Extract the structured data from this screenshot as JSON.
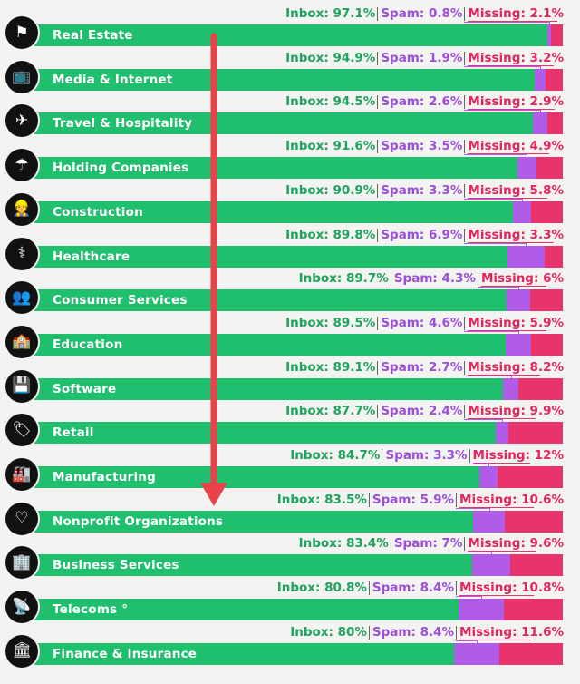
{
  "chart_data": {
    "type": "bar",
    "orientation": "horizontal",
    "stacked": true,
    "title": "",
    "xlabel": "",
    "ylabel": "",
    "xlim": [
      0,
      100
    ],
    "colors": {
      "inbox": "#1fbf6e",
      "spam": "#b05ce8",
      "missing": "#e8336d",
      "arrow": "#e8434a"
    },
    "series_names": [
      "Inbox",
      "Spam",
      "Missing"
    ],
    "categories": [
      {
        "label": "Real Estate",
        "icon": "flag-icon",
        "glyph": "⚑",
        "inbox": 97.1,
        "spam": 0.8,
        "missing": 2.1,
        "inbox_text": "Inbox: 97.1%",
        "spam_text": "Spam: 0.8%",
        "missing_text": "Missing: 2.1%"
      },
      {
        "label": "Media & Internet",
        "icon": "tv-icon",
        "glyph": "📺",
        "inbox": 94.9,
        "spam": 1.9,
        "missing": 3.2,
        "inbox_text": "Inbox: 94.9%",
        "spam_text": "Spam: 1.9%",
        "missing_text": "Missing: 3.2%"
      },
      {
        "label": "Travel & Hospitality",
        "icon": "ticket-icon",
        "glyph": "✈",
        "inbox": 94.5,
        "spam": 2.6,
        "missing": 2.9,
        "inbox_text": "Inbox: 94.5%",
        "spam_text": "Spam: 2.6%",
        "missing_text": "Missing: 2.9%"
      },
      {
        "label": "Holding Companies",
        "icon": "umbrella-icon",
        "glyph": "☂",
        "inbox": 91.6,
        "spam": 3.5,
        "missing": 4.9,
        "inbox_text": "Inbox: 91.6%",
        "spam_text": "Spam: 3.5%",
        "missing_text": "Missing: 4.9%"
      },
      {
        "label": "Construction",
        "icon": "worker-icon",
        "glyph": "👷",
        "inbox": 90.9,
        "spam": 3.3,
        "missing": 5.8,
        "inbox_text": "Inbox: 90.9%",
        "spam_text": "Spam: 3.3%",
        "missing_text": "Missing: 5.8%"
      },
      {
        "label": "Healthcare",
        "icon": "caduceus-icon",
        "glyph": "⚕",
        "inbox": 89.8,
        "spam": 6.9,
        "missing": 3.3,
        "inbox_text": "Inbox: 89.8%",
        "spam_text": "Spam: 6.9%",
        "missing_text": "Missing: 3.3%"
      },
      {
        "label": "Consumer Services",
        "icon": "people-icon",
        "glyph": "👥",
        "inbox": 89.7,
        "spam": 4.3,
        "missing": 6,
        "inbox_text": "Inbox: 89.7%",
        "spam_text": "Spam: 4.3%",
        "missing_text": "Missing: 6%"
      },
      {
        "label": "Education",
        "icon": "school-icon",
        "glyph": "🏫",
        "inbox": 89.5,
        "spam": 4.6,
        "missing": 5.9,
        "inbox_text": "Inbox: 89.5%",
        "spam_text": "Spam: 4.6%",
        "missing_text": "Missing: 5.9%"
      },
      {
        "label": "Software",
        "icon": "software-icon",
        "glyph": "💾",
        "inbox": 89.1,
        "spam": 2.7,
        "missing": 8.2,
        "inbox_text": "Inbox: 89.1%",
        "spam_text": "Spam: 2.7%",
        "missing_text": "Missing: 8.2%"
      },
      {
        "label": "Retail",
        "icon": "tag-icon",
        "glyph": "🏷",
        "inbox": 87.7,
        "spam": 2.4,
        "missing": 9.9,
        "inbox_text": "Inbox: 87.7%",
        "spam_text": "Spam: 2.4%",
        "missing_text": "Missing: 9.9%"
      },
      {
        "label": "Manufacturing",
        "icon": "factory-icon",
        "glyph": "🏭",
        "inbox": 84.7,
        "spam": 3.3,
        "missing": 12,
        "inbox_text": "Inbox: 84.7%",
        "spam_text": "Spam: 3.3%",
        "missing_text": "Missing: 12%"
      },
      {
        "label": "Nonprofit Organizations",
        "icon": "hand-heart-icon",
        "glyph": "♡",
        "inbox": 83.5,
        "spam": 5.9,
        "missing": 10.6,
        "inbox_text": "Inbox: 83.5%",
        "spam_text": "Spam: 5.9%",
        "missing_text": "Missing: 10.6%"
      },
      {
        "label": "Business Services",
        "icon": "building-icon",
        "glyph": "🏢",
        "inbox": 83.4,
        "spam": 7,
        "missing": 9.6,
        "inbox_text": "Inbox: 83.4%",
        "spam_text": "Spam: 7%",
        "missing_text": "Missing: 9.6%"
      },
      {
        "label": "Telecoms °",
        "icon": "antenna-icon",
        "glyph": "📡",
        "inbox": 80.8,
        "spam": 8.4,
        "missing": 10.8,
        "inbox_text": "Inbox: 80.8%",
        "spam_text": "Spam: 8.4%",
        "missing_text": "Missing: 10.8%"
      },
      {
        "label": "Finance & Insurance",
        "icon": "bank-icon",
        "glyph": "🏛",
        "inbox": 80,
        "spam": 8.4,
        "missing": 11.6,
        "inbox_text": "Inbox: 80%",
        "spam_text": "Spam: 8.4%",
        "missing_text": "Missing: 11.6%"
      }
    ]
  }
}
